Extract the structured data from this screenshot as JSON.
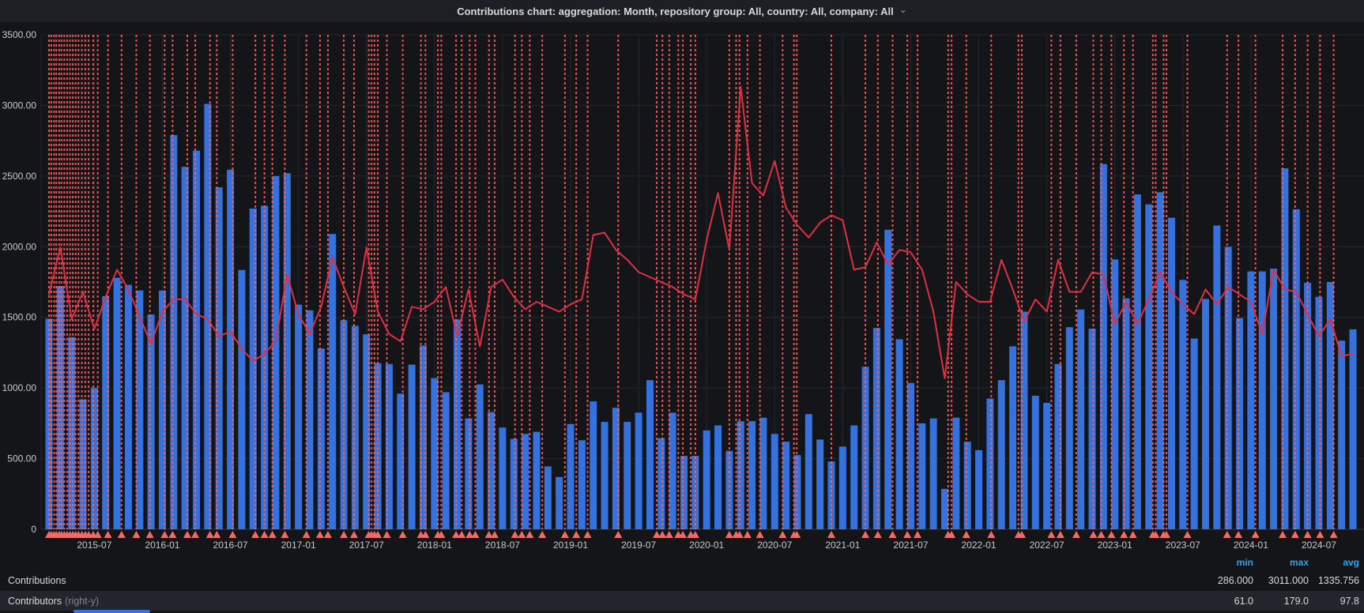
{
  "title": {
    "text": "Contributions chart: aggregation: Month, repository group: All, country: All, company: All",
    "chevron_icon": "⌄"
  },
  "colors": {
    "bar": "#3572dd",
    "line": "#e02f44",
    "annotation": "#f06a6a",
    "grid": "#25282e",
    "axis_line": "#33373d",
    "tick_text": "#c7c8ca",
    "legend_header": "#33a2e5",
    "row_alt_bg": "#22252b"
  },
  "chart_data": {
    "type": "bar",
    "title": "Contributions by month with Contributors overlay line and release annotations",
    "categories": [
      "2015-03",
      "2015-04",
      "2015-05",
      "2015-06",
      "2015-07",
      "2015-08",
      "2015-09",
      "2015-10",
      "2015-11",
      "2015-12",
      "2016-01",
      "2016-02",
      "2016-03",
      "2016-04",
      "2016-05",
      "2016-06",
      "2016-07",
      "2016-08",
      "2016-09",
      "2016-10",
      "2016-11",
      "2016-12",
      "2017-01",
      "2017-02",
      "2017-03",
      "2017-04",
      "2017-05",
      "2017-06",
      "2017-07",
      "2017-08",
      "2017-09",
      "2017-10",
      "2017-11",
      "2017-12",
      "2018-01",
      "2018-02",
      "2018-03",
      "2018-04",
      "2018-05",
      "2018-06",
      "2018-07",
      "2018-08",
      "2018-09",
      "2018-10",
      "2018-11",
      "2018-12",
      "2019-01",
      "2019-02",
      "2019-03",
      "2019-04",
      "2019-05",
      "2019-06",
      "2019-07",
      "2019-08",
      "2019-09",
      "2019-10",
      "2019-11",
      "2019-12",
      "2020-01",
      "2020-02",
      "2020-03",
      "2020-04",
      "2020-05",
      "2020-06",
      "2020-07",
      "2020-08",
      "2020-09",
      "2020-10",
      "2020-11",
      "2020-12",
      "2021-01",
      "2021-02",
      "2021-03",
      "2021-04",
      "2021-05",
      "2021-06",
      "2021-07",
      "2021-08",
      "2021-09",
      "2021-10",
      "2021-11",
      "2021-12",
      "2022-01",
      "2022-02",
      "2022-03",
      "2022-04",
      "2022-05",
      "2022-06",
      "2022-07",
      "2022-08",
      "2022-09",
      "2022-10",
      "2022-11",
      "2022-12",
      "2023-01",
      "2023-02",
      "2023-03",
      "2023-04",
      "2023-05",
      "2023-06",
      "2023-07",
      "2023-08",
      "2023-09",
      "2023-10",
      "2023-11",
      "2023-12",
      "2024-01",
      "2024-02",
      "2024-03",
      "2024-04",
      "2024-05",
      "2024-06",
      "2024-07",
      "2024-08",
      "2024-09",
      "2024-10"
    ],
    "series": [
      {
        "name": "Contributions",
        "type": "bar",
        "axis": "left",
        "values": [
          1490,
          1720,
          1360,
          920,
          1000,
          1650,
          1780,
          1730,
          1690,
          1520,
          1690,
          2790,
          2565,
          2680,
          3011,
          2420,
          2545,
          1835,
          2270,
          2290,
          2500,
          2520,
          1590,
          1550,
          1280,
          2090,
          1480,
          1440,
          1380,
          1175,
          1170,
          960,
          1165,
          1300,
          1070,
          970,
          1485,
          785,
          1025,
          830,
          720,
          640,
          675,
          690,
          445,
          370,
          745,
          630,
          905,
          760,
          860,
          760,
          825,
          1055,
          645,
          825,
          520,
          520,
          700,
          735,
          555,
          765,
          765,
          790,
          675,
          620,
          525,
          815,
          635,
          480,
          585,
          735,
          1150,
          1425,
          2120,
          1345,
          1035,
          750,
          785,
          286,
          790,
          620,
          560,
          925,
          1055,
          1295,
          1540,
          945,
          895,
          1170,
          1430,
          1555,
          1420,
          2585,
          1910,
          1635,
          2370,
          2300,
          2385,
          2205,
          1765,
          1350,
          1630,
          2150,
          2000,
          1495,
          1825,
          1825,
          1845,
          2555,
          2265,
          1745,
          1645,
          1750,
          1335,
          1415
        ]
      },
      {
        "name": "Contributors",
        "type": "line",
        "axis": "right",
        "values": [
          95,
          114,
          85,
          96,
          81,
          94,
          105,
          97,
          86,
          75,
          88,
          93,
          93,
          87,
          85,
          78,
          80,
          73,
          68,
          71,
          76,
          103,
          87,
          79,
          90,
          110,
          98,
          87,
          114,
          88,
          79,
          76,
          90,
          89,
          92,
          98,
          78,
          97,
          74,
          98,
          101,
          94,
          89,
          92,
          90,
          88,
          91,
          93,
          119,
          120,
          113,
          109,
          104,
          102,
          100,
          98,
          95,
          93,
          117,
          136,
          113,
          179,
          140,
          135,
          149,
          130,
          123,
          118,
          124,
          127,
          125,
          105,
          106,
          116,
          107,
          113,
          112,
          105,
          88,
          61,
          100,
          95,
          92,
          92,
          109,
          97,
          84,
          93,
          88,
          109,
          96,
          96,
          104,
          103,
          83,
          92,
          83,
          93,
          104,
          96,
          91,
          87,
          97,
          91,
          98,
          95,
          92,
          79,
          105,
          97,
          96,
          87,
          78,
          85,
          70,
          71
        ]
      }
    ],
    "y_axis": {
      "min": 0,
      "max": 3500,
      "ticks": [
        {
          "v": 3500,
          "label": "3500.00"
        },
        {
          "v": 3000,
          "label": "3000.00"
        },
        {
          "v": 2500,
          "label": "2500.00"
        },
        {
          "v": 2000,
          "label": "2000.00"
        },
        {
          "v": 1500,
          "label": "1500.00"
        },
        {
          "v": 1000,
          "label": "1000.00"
        },
        {
          "v": 500,
          "label": "500.00"
        },
        {
          "v": 0,
          "label": "0"
        }
      ]
    },
    "right_y_axis": {
      "min": 0,
      "max": 200,
      "labels_visible": false
    },
    "x_axis": {
      "ticks": [
        {
          "label": "2015-07",
          "month_index": 4
        },
        {
          "label": "2016-01",
          "month_index": 10
        },
        {
          "label": "2016-07",
          "month_index": 16
        },
        {
          "label": "2017-01",
          "month_index": 22
        },
        {
          "label": "2017-07",
          "month_index": 28
        },
        {
          "label": "2018-01",
          "month_index": 34
        },
        {
          "label": "2018-07",
          "month_index": 40
        },
        {
          "label": "2019-01",
          "month_index": 46
        },
        {
          "label": "2019-07",
          "month_index": 52
        },
        {
          "label": "2020-01",
          "month_index": 58
        },
        {
          "label": "2020-07",
          "month_index": 64
        },
        {
          "label": "2021-01",
          "month_index": 70
        },
        {
          "label": "2021-07",
          "month_index": 76
        },
        {
          "label": "2022-01",
          "month_index": 82
        },
        {
          "label": "2022-07",
          "month_index": 88
        },
        {
          "label": "2023-01",
          "month_index": 94
        },
        {
          "label": "2023-07",
          "month_index": 100
        },
        {
          "label": "2024-01",
          "month_index": 106
        },
        {
          "label": "2024-07",
          "month_index": 112
        }
      ]
    },
    "annotations": {
      "style": "red-dashed-vertical-line-with-bottom-triangle",
      "month_positions": [
        0,
        0.2,
        0.45,
        0.65,
        0.9,
        1.1,
        1.35,
        1.6,
        1.85,
        2.1,
        2.35,
        2.6,
        2.9,
        3.2,
        3.5,
        3.9,
        4.3,
        5.2,
        6.4,
        7.7,
        8.9,
        10.2,
        10.9,
        12.2,
        12.9,
        14.2,
        14.8,
        16.2,
        18.2,
        19.0,
        19.7,
        20.8,
        22.7,
        23.9,
        24.6,
        26.0,
        26.9,
        28.2,
        28.45,
        28.7,
        29.0,
        29.8,
        31.2,
        32.8,
        33.2,
        34.3,
        34.6,
        35.9,
        36.4,
        37.1,
        37.6,
        38.8,
        39.3,
        41.1,
        41.7,
        42.4,
        43.5,
        45.5,
        46.5,
        47.5,
        50.2,
        53.6,
        54.1,
        54.7,
        55.5,
        55.9,
        56.6,
        57.0,
        60.0,
        60.6,
        60.9,
        61.6,
        62.7,
        64.7,
        65.7,
        65.95,
        69.0,
        72.0,
        73.1,
        74.4,
        75.7,
        76.6,
        79.3,
        79.6,
        80.9,
        83.1,
        85.5,
        85.8,
        88.4,
        89.2,
        90.6,
        92.1,
        92.8,
        93.7,
        94.8,
        95.6,
        97.35,
        97.6,
        98.3,
        98.55,
        100.4,
        103.9,
        104.9,
        106.4,
        108.8,
        109.9,
        111.0,
        112.1,
        113.3
      ]
    },
    "legend_position": "bottom"
  },
  "legend": {
    "header": {
      "min": "min",
      "max": "max",
      "avg": "avg"
    },
    "rows": [
      {
        "label": "Contributions",
        "suffix": "",
        "min": "286.000",
        "max": "3011.000",
        "avg": "1335.756"
      },
      {
        "label": "Contributors",
        "suffix": "(right-y)",
        "min": "61.0",
        "max": "179.0",
        "avg": "97.8"
      }
    ]
  }
}
